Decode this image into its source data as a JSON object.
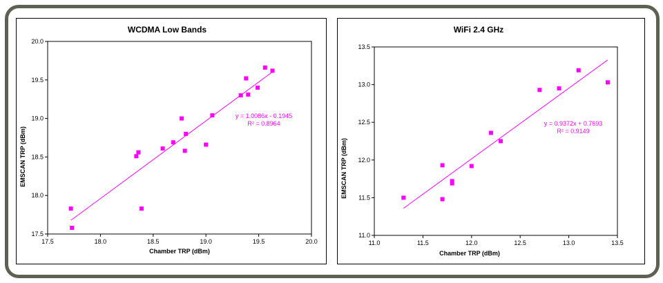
{
  "colors": {
    "marker": "#ff00ff",
    "trendline": "#ff00ff",
    "frame": "#5d6152"
  },
  "chart_data": [
    {
      "type": "scatter",
      "title": "WCDMA Low Bands",
      "xlabel": "Chamber TRP (dBm)",
      "ylabel": "EMSCAN TRP (dBm)",
      "xlim": [
        17.5,
        20.0
      ],
      "ylim": [
        17.5,
        20.0
      ],
      "xticks": [
        17.5,
        18.0,
        18.5,
        19.0,
        19.5,
        20.0
      ],
      "yticks": [
        17.5,
        18.0,
        18.5,
        19.0,
        19.5,
        20.0
      ],
      "xtick_labels": [
        "17.5",
        "18.0",
        "18.5",
        "19.0",
        "19.5",
        "20.0"
      ],
      "ytick_labels": [
        "17.5",
        "18.0",
        "18.5",
        "19.0",
        "19.5",
        "20.0"
      ],
      "grid": false,
      "points": [
        {
          "x": 17.72,
          "y": 17.83
        },
        {
          "x": 17.73,
          "y": 17.58
        },
        {
          "x": 18.34,
          "y": 18.51
        },
        {
          "x": 18.36,
          "y": 18.56
        },
        {
          "x": 18.39,
          "y": 17.83
        },
        {
          "x": 18.59,
          "y": 18.61
        },
        {
          "x": 18.69,
          "y": 18.69
        },
        {
          "x": 18.77,
          "y": 19.0
        },
        {
          "x": 18.8,
          "y": 18.58
        },
        {
          "x": 18.81,
          "y": 18.8
        },
        {
          "x": 19.0,
          "y": 18.66
        },
        {
          "x": 19.06,
          "y": 19.04
        },
        {
          "x": 19.33,
          "y": 19.3
        },
        {
          "x": 19.38,
          "y": 19.52
        },
        {
          "x": 19.4,
          "y": 19.31
        },
        {
          "x": 19.49,
          "y": 19.4
        },
        {
          "x": 19.56,
          "y": 19.66
        },
        {
          "x": 19.63,
          "y": 19.62
        }
      ],
      "trendline": {
        "slope": 1.0086,
        "intercept": -0.1945,
        "x_range": [
          17.72,
          19.63
        ]
      },
      "equation": "y = 1.0086x - 0.1945",
      "r_squared": "R² = 0.8964"
    },
    {
      "type": "scatter",
      "title": "WiFi 2.4 GHz",
      "xlabel": "Chamber TRP (dBm)",
      "ylabel": "EMSCAN TRP (dBm)",
      "xlim": [
        11.0,
        13.5
      ],
      "ylim": [
        11.0,
        13.5
      ],
      "xticks": [
        11.0,
        11.5,
        12.0,
        12.5,
        13.0,
        13.5
      ],
      "yticks": [
        11.0,
        11.5,
        12.0,
        12.5,
        13.0,
        13.5
      ],
      "xtick_labels": [
        "11.0",
        "11.5",
        "12.0",
        "12.5",
        "13.0",
        "13.5"
      ],
      "ytick_labels": [
        "11.0",
        "11.5",
        "12.0",
        "12.5",
        "13.0",
        "13.5"
      ],
      "grid": false,
      "points": [
        {
          "x": 11.3,
          "y": 11.5
        },
        {
          "x": 11.7,
          "y": 11.48
        },
        {
          "x": 11.7,
          "y": 11.93
        },
        {
          "x": 11.8,
          "y": 11.72
        },
        {
          "x": 11.8,
          "y": 11.69
        },
        {
          "x": 12.0,
          "y": 11.92
        },
        {
          "x": 12.2,
          "y": 12.36
        },
        {
          "x": 12.3,
          "y": 12.25
        },
        {
          "x": 12.7,
          "y": 12.93
        },
        {
          "x": 12.9,
          "y": 12.95
        },
        {
          "x": 13.1,
          "y": 13.19
        },
        {
          "x": 13.4,
          "y": 13.03
        }
      ],
      "trendline": {
        "slope": 0.9372,
        "intercept": 0.7693,
        "x_range": [
          11.3,
          13.4
        ]
      },
      "equation": "y = 0.9372x + 0.7693",
      "r_squared": "R² = 0.9149"
    }
  ]
}
